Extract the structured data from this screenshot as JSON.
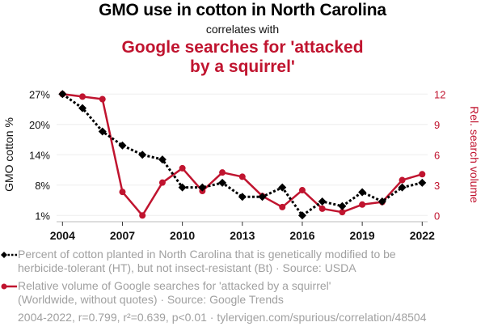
{
  "header": {
    "title": "GMO use in cotton in North Carolina",
    "subtitle": "correlates with",
    "title2_line1": "Google searches for 'attacked",
    "title2_line2": "by a squirrel'"
  },
  "legend": {
    "series1_line1": "Percent of cotton planted in North Carolina that is genetically modified to be",
    "series1_line2": "herbicide-tolerant (HT), but not insect-resistant (Bt) · Source: USDA",
    "series2_line1": "Relative volume of Google searches for 'attacked by a squirrel'",
    "series2_line2": "(Worldwide, without quotes) · Source: Google Trends"
  },
  "footer": "2004-2022, r=0.799, r²=0.639, p<0.01 · tylervigen.com/spurious/correlation/48504",
  "colors": {
    "series1": "#000000",
    "series2": "#c0142f",
    "gridline": "#eeeeee",
    "legend_text": "#a0a0a0"
  },
  "chart_data": {
    "type": "line",
    "title": "GMO use in cotton in North Carolina correlates with Google searches for 'attacked by a squirrel'",
    "x": [
      2004,
      2005,
      2006,
      2007,
      2008,
      2009,
      2010,
      2011,
      2012,
      2013,
      2014,
      2015,
      2016,
      2017,
      2018,
      2019,
      2020,
      2021,
      2022
    ],
    "xlabel": "",
    "xticks": [
      "2004",
      "2007",
      "2010",
      "2013",
      "2016",
      "2019",
      "2022"
    ],
    "xlim": [
      2004,
      2022
    ],
    "y_left": {
      "label": "GMO cotton %",
      "range": [
        1,
        27
      ],
      "ticks": [
        27,
        20.5,
        14,
        7.5,
        1
      ],
      "tick_labels": [
        "27%",
        "20%",
        "14%",
        "8%",
        "1%"
      ]
    },
    "y_right": {
      "label": "Rel. search volume",
      "range": [
        0,
        12
      ],
      "ticks": [
        12,
        9,
        6,
        3,
        0
      ],
      "tick_labels": [
        "12",
        "9",
        "6",
        "3",
        "0"
      ]
    },
    "grid": true,
    "legend_position": "bottom",
    "series": [
      {
        "name": "Percent of cotton planted in North Carolina that is genetically modified to be herbicide-tolerant (HT), but not insect-resistant (Bt)",
        "axis": "left",
        "style": "dotted",
        "marker": "diamond",
        "values": [
          27,
          24,
          19,
          16,
          14,
          13,
          7,
          7,
          8,
          5,
          5,
          7,
          1,
          4,
          3,
          6,
          4,
          7,
          8
        ]
      },
      {
        "name": "Relative volume of Google searches for 'attacked by a squirrel'",
        "axis": "right",
        "style": "solid",
        "marker": "circle",
        "values": [
          12,
          11.75,
          11.5,
          2.33,
          0,
          3.25,
          4.67,
          2.42,
          4.25,
          3.83,
          1.92,
          0.83,
          2.5,
          0.67,
          0.33,
          1.08,
          1.33,
          3.5,
          4.08
        ]
      }
    ]
  }
}
